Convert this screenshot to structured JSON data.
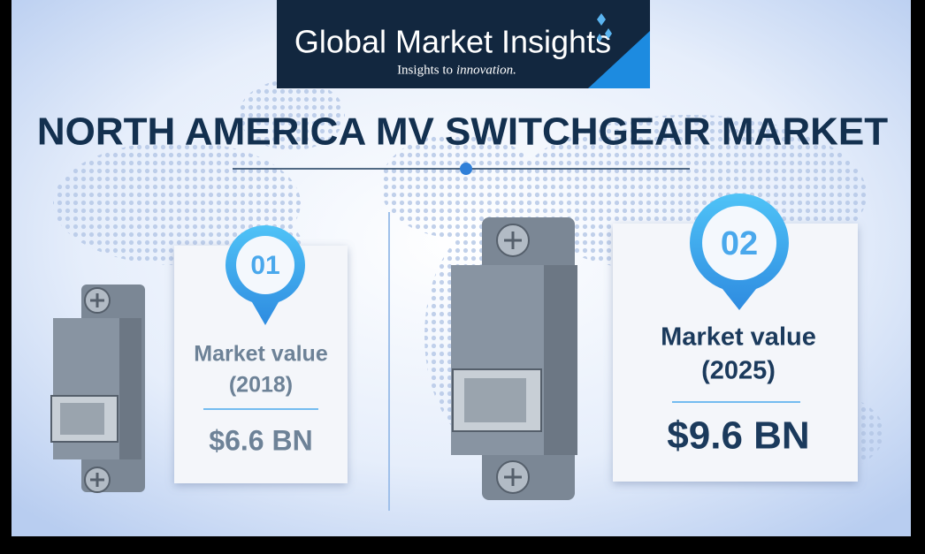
{
  "logo": {
    "name": "Global Market Insights",
    "tagline": "Insights to",
    "tagline_emphasis": "innovation."
  },
  "title": "NORTH AMERICA MV SWITCHGEAR MARKET",
  "cards": [
    {
      "badge": "01",
      "label": "Market value",
      "year": "(2018)",
      "value": "$6.6 BN"
    },
    {
      "badge": "02",
      "label": "Market value",
      "year": "(2025)",
      "value": "$9.6 BN"
    }
  ]
}
